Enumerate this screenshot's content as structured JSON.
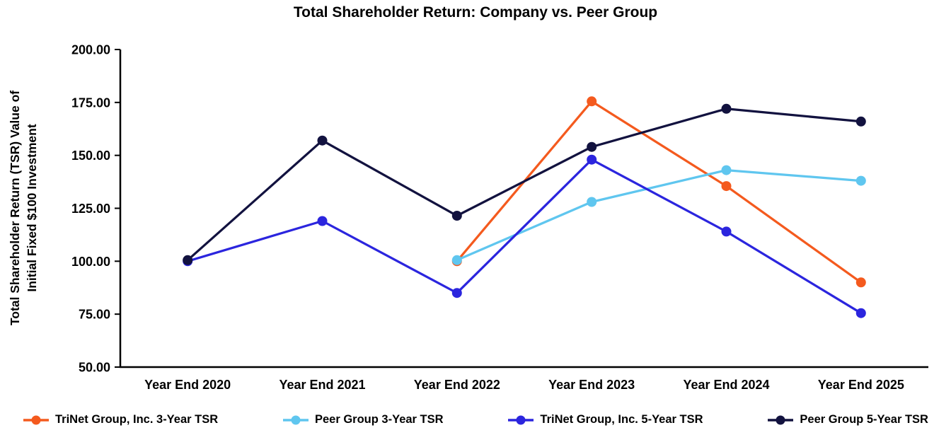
{
  "chart_data": {
    "type": "line",
    "title": "Total Shareholder Return: Company vs. Peer Group",
    "ylabel_lines": [
      "Total Shareholder Return (TSR)  Value of",
      "Initial Fixed $100 Investment"
    ],
    "categories": [
      "Year End 2020",
      "Year End 2021",
      "Year End 2022",
      "Year End 2023",
      "Year End 2024",
      "Year End 2025"
    ],
    "ylim": [
      50,
      200
    ],
    "ytick_step": 25,
    "ytick_decimals": 2,
    "grid": false,
    "legend_position": "bottom",
    "axis_color": "#000000",
    "text_color": "#000000",
    "series": [
      {
        "name": "TriNet Group, Inc. 3-Year TSR",
        "color": "#F45A1E",
        "values": [
          null,
          null,
          100.0,
          175.5,
          135.5,
          90.0
        ]
      },
      {
        "name": "Peer Group 3-Year TSR",
        "color": "#5FC6EF",
        "values": [
          null,
          null,
          100.5,
          128.0,
          143.0,
          138.0
        ]
      },
      {
        "name": "TriNet Group, Inc. 5-Year TSR",
        "color": "#2B25DE",
        "values": [
          100.0,
          119.0,
          85.0,
          148.0,
          114.0,
          75.5
        ]
      },
      {
        "name": "Peer Group 5-Year TSR",
        "color": "#12123F",
        "values": [
          100.5,
          157.0,
          121.5,
          154.0,
          172.0,
          166.0
        ]
      }
    ]
  }
}
